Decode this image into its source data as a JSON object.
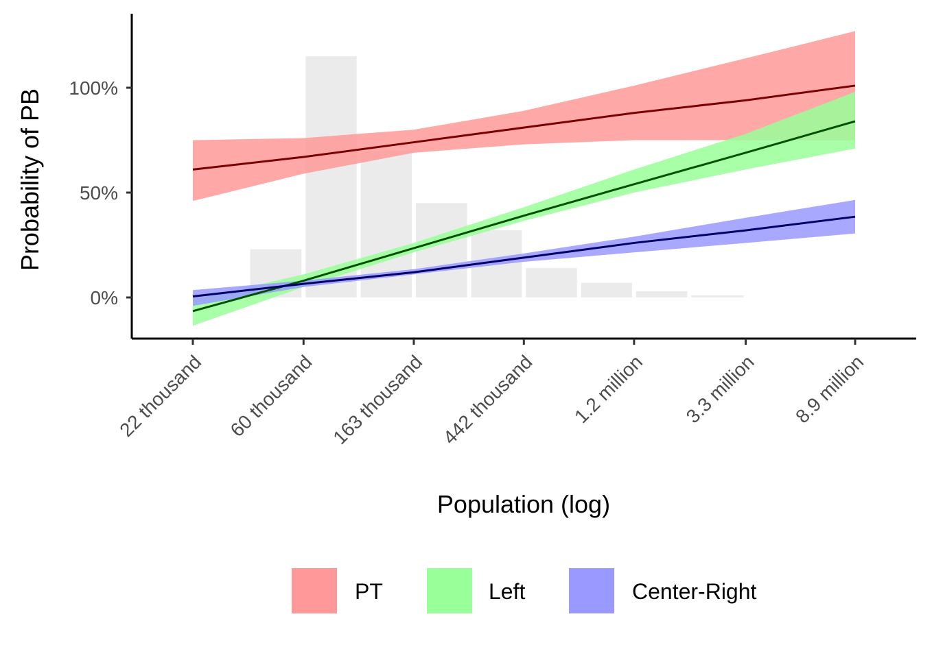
{
  "chart_data": {
    "type": "line",
    "xlabel": "Population (log)",
    "ylabel": "Probability of PB",
    "x_scale": "log",
    "x_ticks": [
      22000,
      60000,
      163000,
      442000,
      1200000,
      3300000,
      8900000
    ],
    "x_tick_labels": [
      "22 thousand",
      "60 thousand",
      "163 thousand",
      "442 thousand",
      "1.2 million",
      "3.3 million",
      "8.9 million"
    ],
    "y_ticks": [
      0,
      0.5,
      1.0
    ],
    "y_tick_labels": [
      "0%",
      "50%",
      "100%"
    ],
    "ylim": [
      -0.2,
      1.38
    ],
    "grid": false,
    "legend_position": "bottom",
    "histogram": {
      "color": "#ebebeb",
      "bin_edges": [
        36300,
        60000,
        98900,
        163000,
        269000,
        442000,
        729000,
        1200000,
        1980000,
        3300000,
        5400000
      ],
      "heights": [
        0.23,
        1.15,
        0.7,
        0.45,
        0.32,
        0.14,
        0.07,
        0.03,
        0.01,
        0.0
      ]
    },
    "series": [
      {
        "name": "PT",
        "fill": "#ff9999",
        "line_color": "#7a0000",
        "x": [
          22000,
          60000,
          163000,
          442000,
          1200000,
          3300000,
          8900000
        ],
        "y": [
          0.61,
          0.67,
          0.74,
          0.81,
          0.88,
          0.94,
          1.01
        ],
        "lower": [
          0.46,
          0.59,
          0.69,
          0.73,
          0.75,
          0.75,
          0.75
        ],
        "upper": [
          0.75,
          0.76,
          0.8,
          0.89,
          1.01,
          1.14,
          1.27
        ]
      },
      {
        "name": "Left",
        "fill": "#99ff99",
        "line_color": "#005000",
        "x": [
          22000,
          60000,
          163000,
          442000,
          1200000,
          3300000,
          8900000
        ],
        "y": [
          -0.065,
          0.08,
          0.235,
          0.39,
          0.54,
          0.69,
          0.84
        ],
        "lower": [
          -0.135,
          0.05,
          0.215,
          0.365,
          0.5,
          0.61,
          0.71
        ],
        "upper": [
          -0.01,
          0.11,
          0.26,
          0.43,
          0.61,
          0.78,
          0.98
        ]
      },
      {
        "name": "Center-Right",
        "fill": "#9999ff",
        "line_color": "#000066",
        "x": [
          22000,
          60000,
          163000,
          442000,
          1200000,
          3300000,
          8900000
        ],
        "y": [
          0.005,
          0.065,
          0.12,
          0.19,
          0.26,
          0.32,
          0.385
        ],
        "lower": [
          -0.04,
          0.05,
          0.11,
          0.17,
          0.215,
          0.26,
          0.305
        ],
        "upper": [
          0.035,
          0.08,
          0.135,
          0.21,
          0.29,
          0.38,
          0.465
        ]
      }
    ]
  }
}
